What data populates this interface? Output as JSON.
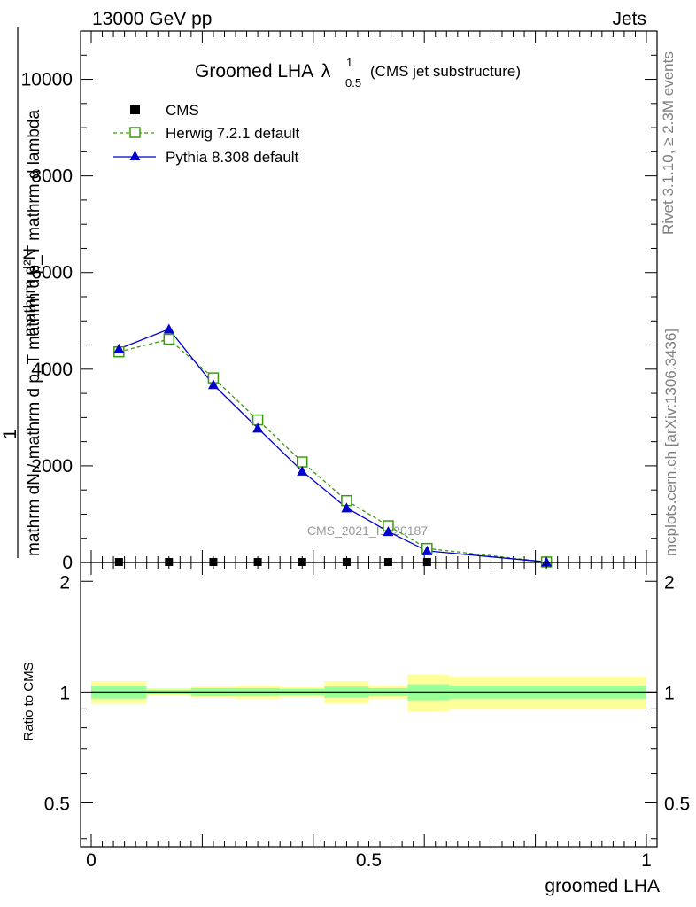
{
  "header": {
    "left": "13000 GeV pp",
    "right": "Jets"
  },
  "side_text": {
    "rivet": "Rivet 3.1.10, ≥ 2.3M events",
    "mcplots": "mcplots.cern.ch [arXiv:1306.3436]"
  },
  "watermark": "CMS_2021_I1920187",
  "colors": {
    "herwig": "#3a9a0c",
    "pythia": "#0000cc",
    "band_inner": "#99ff99",
    "band_outer": "#ffff99"
  },
  "chart_data": [
    {
      "type": "line",
      "title": "Groomed LHA",
      "title_symbol": "λ",
      "title_sup": "1",
      "title_sub": "0.5",
      "title_note": "(CMS jet substructure)",
      "ylabel_numerator": "mathrm d²N",
      "ylabel_denominator": "mathrm d p_T mathrm d lambda",
      "ylabel_sub": "T",
      "ylabel_full": "1 / mathrm dN / mathrm d p_T mathrm d²N / mathrm d p_T mathrm d lambda",
      "ylabel_prefix": "1",
      "ylabel_line": "mathrm dN / mathrm d p_T mathrm d p_T mathrm d lambda",
      "xlim": [
        0,
        1
      ],
      "ylim": [
        0,
        11000
      ],
      "yticks": [
        0,
        2000,
        4000,
        6000,
        8000,
        10000
      ],
      "ytick_labels": [
        "0",
        "2000",
        "4000",
        "6000",
        "8000",
        "10000"
      ],
      "legend": [
        "CMS",
        "Herwig 7.2.1 default",
        "Pythia 8.308 default"
      ],
      "series": [
        {
          "name": "CMS",
          "x": [
            0.05,
            0.14,
            0.22,
            0.3,
            0.38,
            0.46,
            0.535,
            0.605
          ],
          "y": [
            0,
            0,
            0,
            0,
            0,
            0,
            0,
            0
          ]
        },
        {
          "name": "Herwig 7.2.1 default",
          "x": [
            0.05,
            0.14,
            0.22,
            0.3,
            0.38,
            0.46,
            0.535,
            0.605,
            0.82
          ],
          "y": [
            4360,
            4620,
            3820,
            2950,
            2080,
            1280,
            760,
            290,
            10
          ]
        },
        {
          "name": "Pythia 8.308 default",
          "x": [
            0.05,
            0.14,
            0.22,
            0.3,
            0.38,
            0.46,
            0.535,
            0.605,
            0.82
          ],
          "y": [
            4420,
            4830,
            3680,
            2780,
            1890,
            1130,
            640,
            240,
            10
          ]
        }
      ]
    },
    {
      "type": "area",
      "ylabel": "Ratio to CMS",
      "xlabel": "groomed LHA",
      "xlim": [
        0,
        1
      ],
      "ylim": [
        0.38,
        2.25
      ],
      "yticks": [
        0.5,
        1,
        2
      ],
      "ytick_labels": [
        "0.5",
        "1",
        "2"
      ],
      "xticks": [
        0,
        0.5,
        1
      ],
      "xtick_labels": [
        "0",
        "0.5",
        "1"
      ],
      "bins": [
        {
          "x0": 0.0,
          "x1": 0.1,
          "inner": [
            0.96,
            1.04
          ],
          "outer": [
            0.93,
            1.07
          ]
        },
        {
          "x0": 0.1,
          "x1": 0.18,
          "inner": [
            0.985,
            1.015
          ],
          "outer": [
            0.975,
            1.025
          ]
        },
        {
          "x0": 0.18,
          "x1": 0.26,
          "inner": [
            0.975,
            1.025
          ],
          "outer": [
            0.965,
            1.035
          ]
        },
        {
          "x0": 0.26,
          "x1": 0.34,
          "inner": [
            0.975,
            1.025
          ],
          "outer": [
            0.96,
            1.04
          ]
        },
        {
          "x0": 0.34,
          "x1": 0.42,
          "inner": [
            0.98,
            1.02
          ],
          "outer": [
            0.97,
            1.03
          ]
        },
        {
          "x0": 0.42,
          "x1": 0.5,
          "inner": [
            0.965,
            1.035
          ],
          "outer": [
            0.93,
            1.07
          ]
        },
        {
          "x0": 0.5,
          "x1": 0.57,
          "inner": [
            0.975,
            1.025
          ],
          "outer": [
            0.96,
            1.04
          ]
        },
        {
          "x0": 0.57,
          "x1": 0.645,
          "inner": [
            0.95,
            1.05
          ],
          "outer": [
            0.885,
            1.115
          ]
        },
        {
          "x0": 0.645,
          "x1": 1.0,
          "inner": [
            0.96,
            1.04
          ],
          "outer": [
            0.9,
            1.1
          ]
        }
      ],
      "herwig_ratio_note": "off-scale",
      "pythia_ratio_note": "off-scale"
    }
  ]
}
